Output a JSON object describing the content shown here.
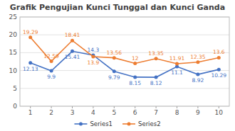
{
  "chart_data": {
    "type": "line",
    "title": "Grafik Pengujian Kunci Tunggal dan Kunci Ganda",
    "x": [
      1,
      2,
      3,
      4,
      5,
      6,
      7,
      8,
      9,
      10
    ],
    "series": [
      {
        "name": "Series1",
        "color": "#4472c4",
        "marker": "circle",
        "values": [
          12.13,
          9.9,
          15.41,
          14.3,
          9.79,
          8.15,
          8.12,
          11.1,
          8.92,
          10.29
        ]
      },
      {
        "name": "Series2",
        "color": "#ed7d31",
        "marker": "circle",
        "values": [
          19.29,
          12.59,
          18.41,
          13.9,
          13.56,
          12.0,
          13.35,
          11.91,
          12.35,
          13.6
        ]
      }
    ],
    "xlim": [
      0.5,
      10.5
    ],
    "xticks": [
      1,
      2,
      3,
      4,
      5,
      6,
      7,
      8,
      9,
      10
    ],
    "ylim": [
      0,
      25
    ],
    "yticks": [
      0,
      5,
      10,
      15,
      20,
      25
    ],
    "grid": true,
    "legend": "bottom",
    "data_labels": true
  }
}
